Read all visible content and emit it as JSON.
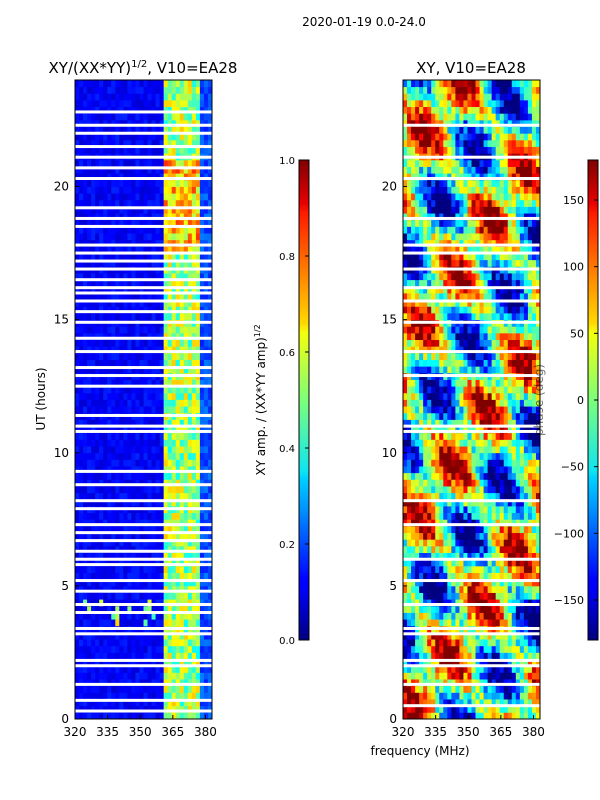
{
  "header": {
    "title": "2020-01-19 0.0-24.0"
  },
  "chart_data": [
    {
      "type": "heatmap",
      "title": "XY/(XX*YY)",
      "title_exponent": "1/2",
      "title_suffix": ", V10=EA28",
      "xlabel": "",
      "ylabel": "UT (hours)",
      "xlim": [
        320,
        383
      ],
      "ylim": [
        0,
        24
      ],
      "xticks": [
        "320",
        "335",
        "350",
        "365",
        "380"
      ],
      "yticks": [
        "0",
        "5",
        "10",
        "15",
        "20"
      ],
      "colorbar": {
        "label": "XY amp. / (XX*YY amp)",
        "label_exponent": "1/2",
        "range": [
          0.0,
          1.0
        ],
        "ticks": [
          "0.0",
          "0.2",
          "0.4",
          "0.6",
          "0.8",
          "1.0"
        ]
      },
      "colormap": "jet",
      "background_value": 0.08,
      "bright_bands_mhz": [
        [
          360,
          363.5
        ],
        [
          363.5,
          366.5
        ],
        [
          366.5,
          370
        ],
        [
          370,
          373.5
        ],
        [
          373.5,
          378
        ]
      ],
      "missing_ut_hours": [
        0.3,
        0.7,
        1.3,
        2.0,
        2.2,
        3.2,
        3.4,
        4.0,
        4.3,
        4.8,
        5.2,
        5.8,
        6.0,
        6.3,
        6.7,
        7.0,
        7.3,
        7.9,
        8.2,
        8.8,
        9.3,
        10.8,
        11.0,
        11.4,
        12.5,
        12.9,
        13.2,
        13.8,
        14.3,
        14.9,
        15.3,
        15.7,
        16.0,
        16.2,
        16.5,
        16.9,
        17.2,
        17.5,
        17.8,
        18.5,
        18.8,
        19.2,
        20.3,
        20.7,
        21.1,
        21.5,
        22.0,
        22.3,
        22.8
      ]
    },
    {
      "type": "heatmap",
      "title": "XY, V10=EA28",
      "xlabel": "frequency (MHz)",
      "ylabel": "",
      "xlim": [
        320,
        383
      ],
      "ylim": [
        0,
        24
      ],
      "xticks": [
        "320",
        "335",
        "350",
        "365",
        "380"
      ],
      "yticks": [
        "0",
        "5",
        "10",
        "15",
        "20"
      ],
      "colorbar": {
        "label": "phase (deg)",
        "range": [
          -180,
          180
        ],
        "ticks": [
          "−150",
          "−100",
          "−50",
          "0",
          "50",
          "100",
          "150"
        ]
      },
      "colormap": "jet",
      "missing_ut_hours": [
        0.5,
        1.3,
        2.0,
        2.2,
        3.2,
        3.4,
        4.3,
        5.2,
        6.0,
        7.3,
        8.2,
        10.8,
        11.0,
        12.9,
        13.8,
        14.9,
        15.7,
        16.2,
        16.9,
        17.5,
        17.8,
        18.8,
        20.3,
        21.1,
        22.3
      ]
    }
  ]
}
